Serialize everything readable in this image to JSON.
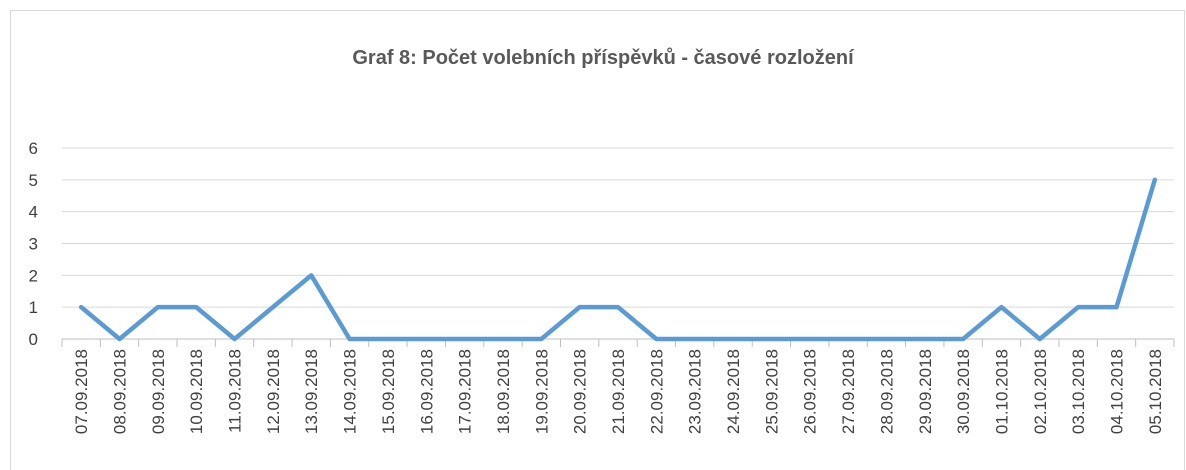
{
  "chart_data": {
    "type": "line",
    "title": "Graf 8: Počet volebních příspěvků - časové rozložení",
    "categories": [
      "07.09.2018",
      "08.09.2018",
      "09.09.2018",
      "10.09.2018",
      "11.09.2018",
      "12.09.2018",
      "13.09.2018",
      "14.09.2018",
      "15.09.2018",
      "16.09.2018",
      "17.09.2018",
      "18.09.2018",
      "19.09.2018",
      "20.09.2018",
      "21.09.2018",
      "22.09.2018",
      "23.09.2018",
      "24.09.2018",
      "25.09.2018",
      "26.09.2018",
      "27.09.2018",
      "28.09.2018",
      "29.09.2018",
      "30.09.2018",
      "01.10.2018",
      "02.10.2018",
      "03.10.2018",
      "04.10.2018",
      "05.10.2018"
    ],
    "values": [
      1,
      0,
      1,
      1,
      0,
      1,
      2,
      0,
      0,
      0,
      0,
      0,
      0,
      1,
      1,
      0,
      0,
      0,
      0,
      0,
      0,
      0,
      0,
      0,
      1,
      0,
      1,
      1,
      5
    ],
    "color": "#5b9bd5",
    "ylim": [
      0,
      6
    ],
    "yticks": [
      0,
      1,
      2,
      3,
      4,
      5,
      6
    ],
    "grid": true
  }
}
